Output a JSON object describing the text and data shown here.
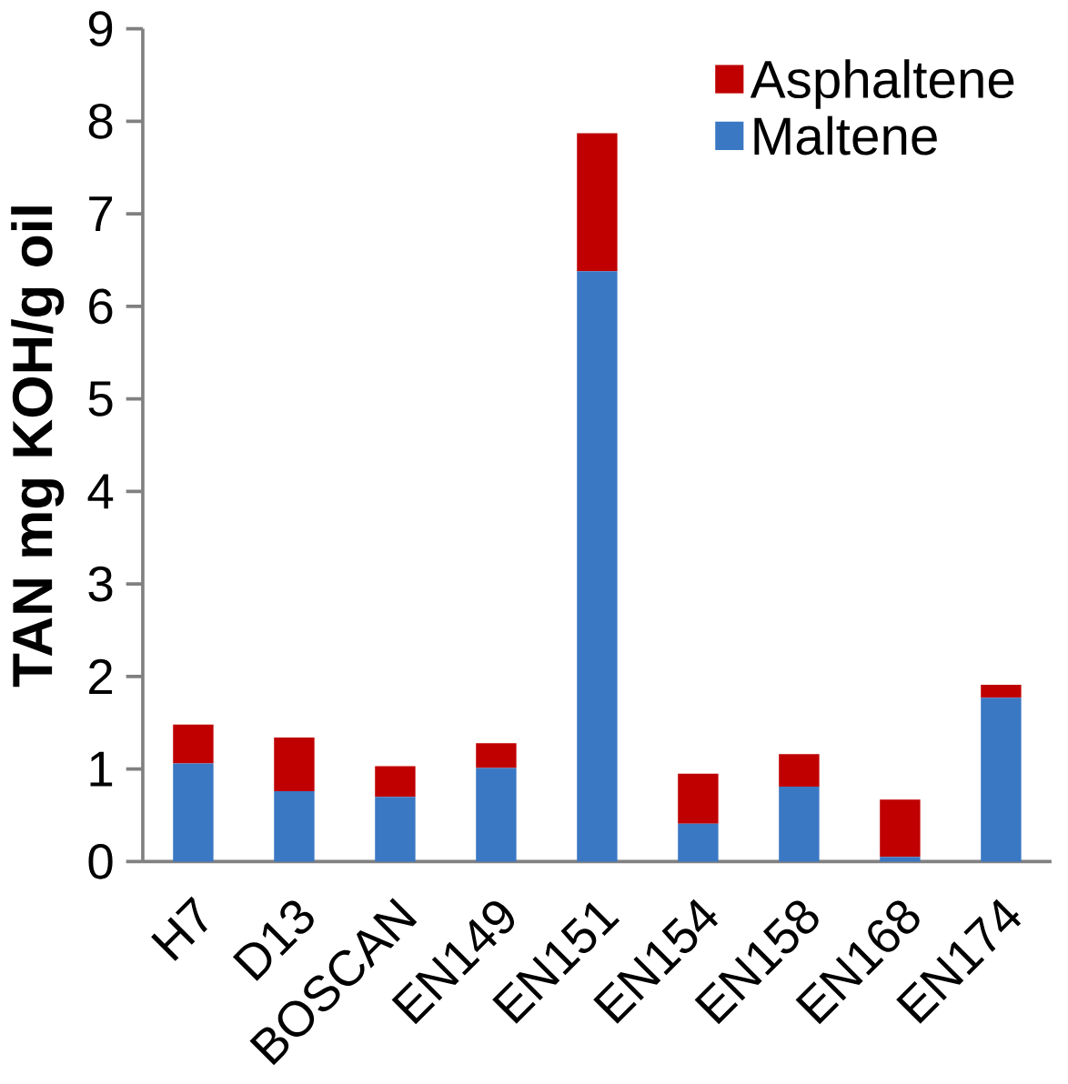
{
  "chart_data": {
    "type": "bar",
    "stacked": true,
    "ylabel": "TAN mg KOH/g oil",
    "categories": [
      "H7",
      "D13",
      "BOSCAN",
      "EN149",
      "EN151",
      "EN154",
      "EN158",
      "EN168",
      "EN174"
    ],
    "series": [
      {
        "name": "Maltene",
        "color": "#3a78c4",
        "values": [
          1.06,
          0.76,
          0.7,
          1.01,
          6.38,
          0.41,
          0.81,
          0.05,
          1.77
        ]
      },
      {
        "name": "Asphaltene",
        "color": "#c00000",
        "values": [
          0.42,
          0.58,
          0.33,
          0.27,
          1.49,
          0.54,
          0.35,
          0.62,
          0.14
        ]
      }
    ],
    "ylim": [
      0,
      9
    ],
    "yticks": [
      0,
      1,
      2,
      3,
      4,
      5,
      6,
      7,
      8,
      9
    ],
    "grid": false,
    "legend": "top right"
  }
}
